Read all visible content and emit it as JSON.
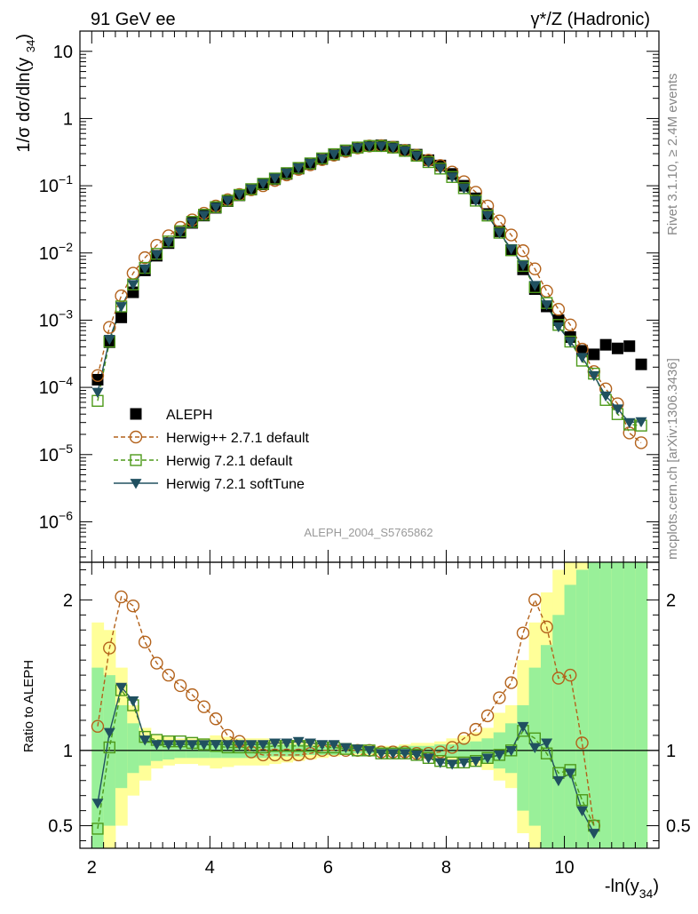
{
  "header": {
    "left_label": "91 GeV ee",
    "right_label": "γ*/Z (Hadronic)"
  },
  "side_labels": {
    "rivet": "Rivet 3.1.10, ≥ 2.4M events",
    "mcplots": "mcplots.cern.ch [arXiv:1306.3436]"
  },
  "watermark": "ALEPH_2004_S5765862",
  "chart_data": [
    {
      "type": "scatter",
      "panel": "main",
      "ylabel": "1/σ dσ/dln(y34)",
      "yscale": "log",
      "ylim": [
        2.5e-07,
        20
      ],
      "xlim": [
        1.8,
        11.6
      ],
      "y_ticks": [
        {
          "value": 10,
          "label": "10"
        },
        {
          "value": 1,
          "label": "1"
        },
        {
          "value": 0.1,
          "label": "10-1"
        },
        {
          "value": 0.01,
          "label": "10-2"
        },
        {
          "value": 0.001,
          "label": "10-3"
        },
        {
          "value": 0.0001,
          "label": "10-4"
        },
        {
          "value": 1e-05,
          "label": "10-5"
        },
        {
          "value": 1e-06,
          "label": "10-6"
        }
      ],
      "legend_position": "bottom-left",
      "series": [
        {
          "name": "ALEPH",
          "color": "#000000",
          "marker": "square-filled",
          "line": "none",
          "x": [
            2.1,
            2.3,
            2.5,
            2.7,
            2.9,
            3.1,
            3.3,
            3.5,
            3.7,
            3.9,
            4.1,
            4.3,
            4.5,
            4.7,
            4.9,
            5.1,
            5.3,
            5.5,
            5.7,
            5.9,
            6.1,
            6.3,
            6.5,
            6.7,
            6.9,
            7.1,
            7.3,
            7.5,
            7.7,
            7.9,
            8.1,
            8.3,
            8.5,
            8.7,
            8.9,
            9.1,
            9.3,
            9.5,
            9.7,
            9.9,
            10.1,
            10.3,
            10.5,
            10.7,
            10.9,
            11.1,
            11.3
          ],
          "y": [
            0.00013,
            0.00047,
            0.0011,
            0.0026,
            0.0055,
            0.0091,
            0.014,
            0.02,
            0.028,
            0.036,
            0.047,
            0.059,
            0.072,
            0.088,
            0.105,
            0.125,
            0.15,
            0.18,
            0.21,
            0.25,
            0.29,
            0.33,
            0.37,
            0.39,
            0.4,
            0.38,
            0.34,
            0.29,
            0.24,
            0.2,
            0.15,
            0.1,
            0.065,
            0.038,
            0.021,
            0.011,
            0.0057,
            0.0029,
            0.0016,
            0.001,
            0.00056,
            0.00035,
            0.00031,
            0.00043,
            0.00038,
            0.00041,
            0.00022
          ]
        },
        {
          "name": "Herwig++ 2.7.1 default",
          "color": "#b3621b",
          "marker": "circle-open",
          "line": "dashed",
          "x": [
            2.1,
            2.3,
            2.5,
            2.7,
            2.9,
            3.1,
            3.3,
            3.5,
            3.7,
            3.9,
            4.1,
            4.3,
            4.5,
            4.7,
            4.9,
            5.1,
            5.3,
            5.5,
            5.7,
            5.9,
            6.1,
            6.3,
            6.5,
            6.7,
            6.9,
            7.1,
            7.3,
            7.5,
            7.7,
            7.9,
            8.1,
            8.3,
            8.5,
            8.7,
            8.9,
            9.1,
            9.3,
            9.5,
            9.7,
            9.9,
            10.1,
            10.3,
            10.5,
            10.7,
            10.9,
            11.1,
            11.3
          ],
          "y": [
            0.00015,
            0.00078,
            0.0023,
            0.005,
            0.0085,
            0.013,
            0.018,
            0.024,
            0.031,
            0.039,
            0.05,
            0.062,
            0.074,
            0.087,
            0.1,
            0.12,
            0.145,
            0.175,
            0.205,
            0.245,
            0.285,
            0.325,
            0.365,
            0.39,
            0.395,
            0.375,
            0.335,
            0.285,
            0.24,
            0.2,
            0.16,
            0.115,
            0.08,
            0.05,
            0.03,
            0.0185,
            0.0108,
            0.0058,
            0.0027,
            0.00145,
            0.00085,
            0.00037,
            0.000172,
            9.5e-05,
            5.7e-05,
            2.1e-05,
            1.5e-05
          ]
        },
        {
          "name": "Herwig 7.2.1 default",
          "color": "#4d9a1a",
          "marker": "square-open",
          "line": "dashed",
          "x": [
            2.1,
            2.3,
            2.5,
            2.7,
            2.9,
            3.1,
            3.3,
            3.5,
            3.7,
            3.9,
            4.1,
            4.3,
            4.5,
            4.7,
            4.9,
            5.1,
            5.3,
            5.5,
            5.7,
            5.9,
            6.1,
            6.3,
            6.5,
            6.7,
            6.9,
            7.1,
            7.3,
            7.5,
            7.7,
            7.9,
            8.1,
            8.3,
            8.5,
            8.7,
            8.9,
            9.1,
            9.3,
            9.5,
            9.7,
            9.9,
            10.1,
            10.3,
            10.5,
            10.7,
            10.9,
            11.1,
            11.3
          ],
          "y": [
            6.3e-05,
            0.00048,
            0.0016,
            0.0034,
            0.006,
            0.0097,
            0.0148,
            0.021,
            0.029,
            0.037,
            0.048,
            0.06,
            0.073,
            0.089,
            0.107,
            0.128,
            0.154,
            0.184,
            0.215,
            0.255,
            0.295,
            0.335,
            0.37,
            0.39,
            0.39,
            0.37,
            0.33,
            0.28,
            0.225,
            0.18,
            0.135,
            0.092,
            0.06,
            0.036,
            0.02,
            0.011,
            0.0064,
            0.0031,
            0.0018,
            0.00085,
            0.00048,
            0.00025,
            0.00016,
            6.5e-05,
            4e-05,
            2.8e-05,
            2.7e-05
          ]
        },
        {
          "name": "Herwig 7.2.1 softTune",
          "color": "#205060",
          "marker": "triangle-down-filled",
          "line": "solid",
          "x": [
            2.1,
            2.3,
            2.5,
            2.7,
            2.9,
            3.1,
            3.3,
            3.5,
            3.7,
            3.9,
            4.1,
            4.3,
            4.5,
            4.7,
            4.9,
            5.1,
            5.3,
            5.5,
            5.7,
            5.9,
            6.1,
            6.3,
            6.5,
            6.7,
            6.9,
            7.1,
            7.3,
            7.5,
            7.7,
            7.9,
            8.1,
            8.3,
            8.5,
            8.7,
            8.9,
            9.1,
            9.3,
            9.5,
            9.7,
            9.9,
            10.1,
            10.3,
            10.5,
            10.7,
            10.9,
            11.1,
            11.3
          ],
          "y": [
            8.5e-05,
            0.00052,
            0.0016,
            0.0034,
            0.0058,
            0.0095,
            0.0145,
            0.0205,
            0.0285,
            0.0365,
            0.048,
            0.06,
            0.074,
            0.09,
            0.108,
            0.13,
            0.155,
            0.185,
            0.216,
            0.255,
            0.295,
            0.335,
            0.37,
            0.39,
            0.39,
            0.37,
            0.33,
            0.28,
            0.225,
            0.18,
            0.135,
            0.092,
            0.06,
            0.036,
            0.02,
            0.0115,
            0.0066,
            0.0033,
            0.0017,
            0.0008,
            0.00048,
            0.00028,
            0.00015,
            7.5e-05,
            4.8e-05,
            3e-05,
            3.1e-05
          ]
        }
      ]
    },
    {
      "type": "line",
      "panel": "ratio",
      "ylabel": "Ratio to ALEPH",
      "xlabel": "-ln(y34)",
      "ylim": [
        0.35,
        2.25
      ],
      "xlim": [
        1.8,
        11.6
      ],
      "x_ticks": [
        2,
        4,
        6,
        8,
        10
      ],
      "y_ticks": [
        0.5,
        1,
        2
      ],
      "reference_line": 1,
      "bands": {
        "x_edges": [
          2.0,
          2.2,
          2.4,
          2.6,
          2.8,
          3.0,
          3.2,
          3.4,
          3.6,
          3.8,
          4.0,
          4.2,
          4.4,
          4.6,
          4.8,
          5.0,
          5.2,
          5.4,
          5.6,
          5.8,
          6.0,
          6.2,
          6.4,
          6.6,
          6.8,
          7.0,
          7.2,
          7.4,
          7.6,
          7.8,
          8.0,
          8.2,
          8.4,
          8.6,
          8.8,
          9.0,
          9.2,
          9.4,
          9.6,
          9.8,
          10.0,
          10.2,
          10.4,
          10.6,
          10.8,
          11.0,
          11.2,
          11.4
        ],
        "stat_lo": [
          0.35,
          0.5,
          0.75,
          0.85,
          0.9,
          0.93,
          0.94,
          0.95,
          0.95,
          0.95,
          0.95,
          0.95,
          0.95,
          0.95,
          0.95,
          0.96,
          0.96,
          0.96,
          0.97,
          0.97,
          0.97,
          0.98,
          0.98,
          0.98,
          0.98,
          0.98,
          0.97,
          0.97,
          0.97,
          0.96,
          0.96,
          0.95,
          0.94,
          0.92,
          0.88,
          0.85,
          0.6,
          0.5,
          0.35,
          0.35,
          0.35,
          0.35,
          0.35,
          0.35,
          0.35,
          0.35,
          0.35
        ],
        "stat_hi": [
          1.55,
          1.5,
          1.3,
          1.18,
          1.1,
          1.07,
          1.06,
          1.05,
          1.05,
          1.05,
          1.05,
          1.05,
          1.05,
          1.05,
          1.05,
          1.04,
          1.04,
          1.04,
          1.03,
          1.03,
          1.03,
          1.02,
          1.02,
          1.02,
          1.02,
          1.02,
          1.03,
          1.03,
          1.03,
          1.04,
          1.04,
          1.05,
          1.06,
          1.08,
          1.12,
          1.18,
          1.3,
          1.55,
          1.7,
          1.9,
          2.1,
          2.2,
          2.25,
          2.25,
          2.25,
          2.25,
          2.25
        ],
        "tot_lo": [
          0.35,
          0.35,
          0.5,
          0.7,
          0.8,
          0.88,
          0.9,
          0.91,
          0.91,
          0.9,
          0.88,
          0.89,
          0.9,
          0.9,
          0.9,
          0.91,
          0.92,
          0.93,
          0.94,
          0.95,
          0.96,
          0.97,
          0.97,
          0.97,
          0.97,
          0.97,
          0.96,
          0.95,
          0.95,
          0.94,
          0.93,
          0.92,
          0.9,
          0.87,
          0.8,
          0.75,
          0.45,
          0.35,
          0.35,
          0.35,
          0.35,
          0.35,
          0.35,
          0.35,
          0.35,
          0.35,
          0.35
        ],
        "tot_hi": [
          1.85,
          1.8,
          1.55,
          1.3,
          1.15,
          1.1,
          1.09,
          1.08,
          1.08,
          1.08,
          1.1,
          1.09,
          1.08,
          1.08,
          1.08,
          1.07,
          1.06,
          1.06,
          1.05,
          1.04,
          1.04,
          1.03,
          1.03,
          1.03,
          1.03,
          1.03,
          1.04,
          1.05,
          1.05,
          1.06,
          1.08,
          1.1,
          1.12,
          1.15,
          1.25,
          1.3,
          1.6,
          1.85,
          2.05,
          2.2,
          2.25,
          2.25,
          2.25,
          2.25,
          2.25,
          2.25,
          2.25
        ]
      },
      "series": [
        {
          "name": "Herwig++ 2.7.1 default",
          "color": "#b3621b",
          "marker": "circle-open",
          "line": "dashed",
          "x": [
            2.1,
            2.3,
            2.5,
            2.7,
            2.9,
            3.1,
            3.3,
            3.5,
            3.7,
            3.9,
            4.1,
            4.3,
            4.5,
            4.7,
            4.9,
            5.1,
            5.3,
            5.5,
            5.7,
            5.9,
            6.1,
            6.3,
            6.5,
            6.7,
            6.9,
            7.1,
            7.3,
            7.5,
            7.7,
            7.9,
            8.1,
            8.3,
            8.5,
            8.7,
            8.9,
            9.1,
            9.3,
            9.5,
            9.7,
            9.9,
            10.1,
            10.3,
            10.5
          ],
          "y": [
            1.16,
            1.68,
            2.02,
            1.96,
            1.72,
            1.58,
            1.5,
            1.43,
            1.37,
            1.29,
            1.21,
            1.1,
            1.06,
            0.99,
            0.97,
            0.97,
            0.97,
            0.97,
            0.98,
            1.0,
            1.0,
            1.0,
            1.0,
            1.0,
            0.99,
            0.99,
            0.99,
            0.98,
            0.98,
            0.99,
            1.02,
            1.08,
            1.14,
            1.23,
            1.35,
            1.45,
            1.78,
            2.0,
            1.82,
            1.48,
            1.5,
            1.05,
            0.5
          ]
        },
        {
          "name": "Herwig 7.2.1 default",
          "color": "#4d9a1a",
          "marker": "square-open",
          "line": "dashed",
          "x": [
            2.1,
            2.3,
            2.5,
            2.7,
            2.9,
            3.1,
            3.3,
            3.5,
            3.7,
            3.9,
            4.1,
            4.3,
            4.5,
            4.7,
            4.9,
            5.1,
            5.3,
            5.5,
            5.7,
            5.9,
            6.1,
            6.3,
            6.5,
            6.7,
            6.9,
            7.1,
            7.3,
            7.5,
            7.7,
            7.9,
            8.1,
            8.3,
            8.5,
            8.7,
            8.9,
            9.1,
            9.3,
            9.5,
            9.7,
            9.9,
            10.1,
            10.3,
            10.5
          ],
          "y": [
            0.48,
            1.02,
            1.4,
            1.3,
            1.09,
            1.07,
            1.06,
            1.06,
            1.05,
            1.04,
            1.03,
            1.02,
            1.02,
            1.02,
            1.02,
            1.03,
            1.03,
            1.03,
            1.03,
            1.02,
            1.02,
            1.01,
            1.0,
            1.0,
            0.98,
            0.98,
            0.98,
            0.97,
            0.95,
            0.93,
            0.92,
            0.92,
            0.93,
            0.95,
            0.97,
            1.0,
            1.13,
            1.08,
            0.98,
            0.85,
            0.87,
            0.67,
            0.5
          ]
        },
        {
          "name": "Herwig 7.2.1 softTune",
          "color": "#205060",
          "marker": "triangle-down-filled",
          "line": "solid",
          "x": [
            2.1,
            2.3,
            2.5,
            2.7,
            2.9,
            3.1,
            3.3,
            3.5,
            3.7,
            3.9,
            4.1,
            4.3,
            4.5,
            4.7,
            4.9,
            5.1,
            5.3,
            5.5,
            5.7,
            5.9,
            6.1,
            6.3,
            6.5,
            6.7,
            6.9,
            7.1,
            7.3,
            7.5,
            7.7,
            7.9,
            8.1,
            8.3,
            8.5,
            8.7,
            8.9,
            9.1,
            9.3,
            9.5,
            9.7,
            9.9,
            10.1,
            10.3,
            10.5
          ],
          "y": [
            0.65,
            1.12,
            1.42,
            1.33,
            1.07,
            1.04,
            1.04,
            1.04,
            1.04,
            1.04,
            1.04,
            1.04,
            1.04,
            1.04,
            1.04,
            1.05,
            1.05,
            1.06,
            1.05,
            1.04,
            1.04,
            1.02,
            1.01,
            1.0,
            0.98,
            0.98,
            0.98,
            0.97,
            0.95,
            0.92,
            0.91,
            0.92,
            0.93,
            0.95,
            0.97,
            1.0,
            1.16,
            1.02,
            1.05,
            0.8,
            0.85,
            0.6,
            0.45
          ]
        }
      ]
    }
  ]
}
